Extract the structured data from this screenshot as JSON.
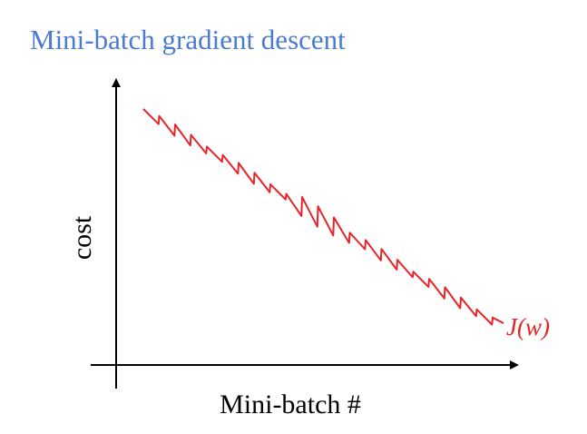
{
  "title": "Mini-batch gradient descent",
  "y_axis_label": "cost",
  "x_axis_label": "Mini-batch #",
  "curve_label": "J(w)"
}
